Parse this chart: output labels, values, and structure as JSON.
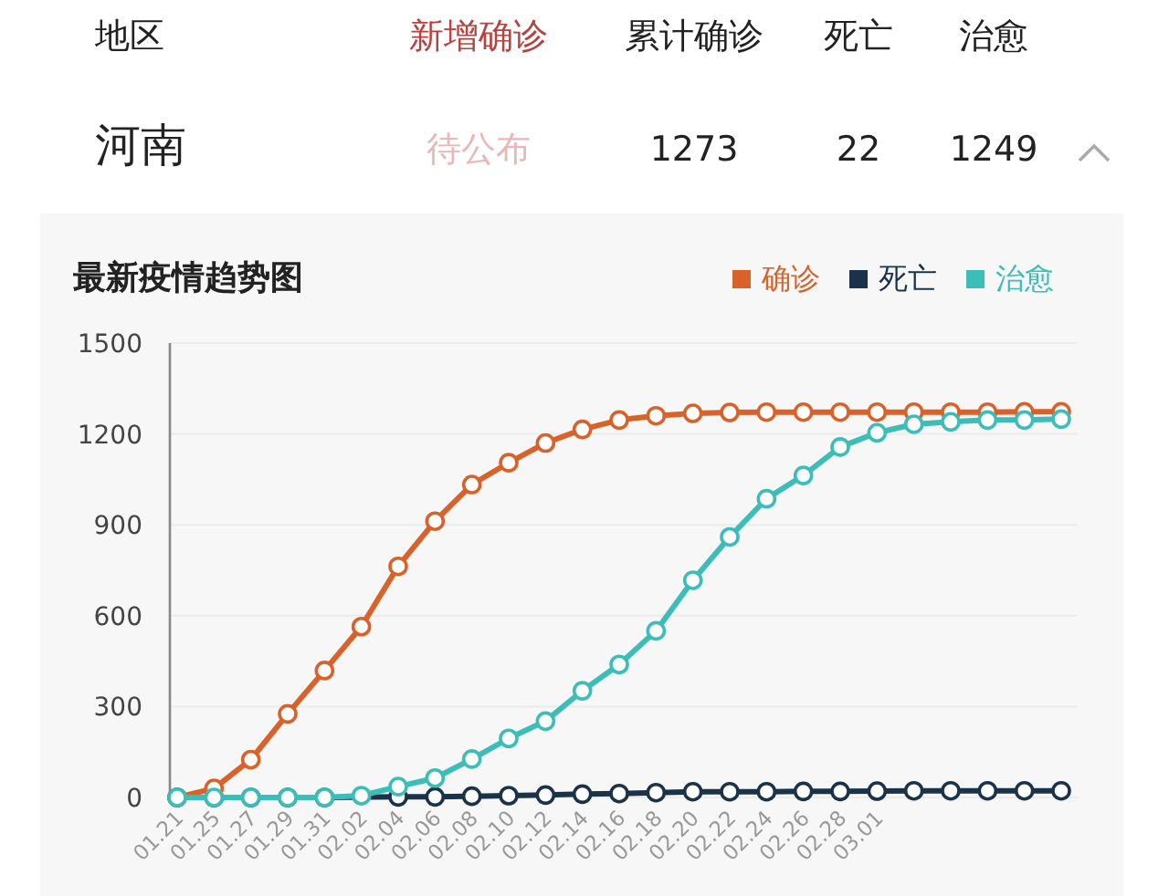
{
  "chart_data": {
    "type": "line",
    "title": "最新疫情趋势图",
    "annotations": [
      "地区",
      "新增确诊",
      "累计确诊",
      "死亡",
      "治愈",
      "河南",
      "待公布",
      "1273",
      "22",
      "1249"
    ],
    "categories": [
      "01.21",
      "01.25",
      "01.27",
      "01.29",
      "01.31",
      "02.02",
      "02.04",
      "02.06",
      "02.08",
      "02.10",
      "02.12",
      "02.14",
      "02.16",
      "02.18",
      "02.20",
      "02.22",
      "02.24",
      "02.26",
      "02.28",
      "03.01",
      null,
      null,
      null,
      null,
      null
    ],
    "series": [
      {
        "name": "确诊",
        "color": "#d9622b",
        "values": [
          0,
          30,
          125,
          276,
          419,
          564,
          763,
          912,
          1033,
          1105,
          1170,
          1215,
          1246,
          1260,
          1268,
          1271,
          1272,
          1272,
          1272,
          1272,
          1272,
          1272,
          1272,
          1273,
          1273
        ]
      },
      {
        "name": "死亡",
        "color": "#1b3349",
        "values": [
          0,
          0,
          0,
          0,
          0,
          null,
          2,
          2,
          4,
          6,
          8,
          11,
          13,
          16,
          19,
          19,
          19,
          20,
          20,
          21,
          22,
          22,
          22,
          22,
          22
        ]
      },
      {
        "name": "治愈",
        "color": "#3dbdb8",
        "values": [
          0,
          0,
          0,
          0,
          0,
          6,
          36,
          64,
          127,
          195,
          252,
          352,
          439,
          550,
          717,
          860,
          986,
          1063,
          1157,
          1204,
          1232,
          1240,
          1246,
          1246,
          1249
        ]
      }
    ],
    "ylim": [
      0,
      1500
    ],
    "yticks": [
      0,
      300,
      600,
      900,
      1200,
      1500
    ],
    "grid": "y",
    "legend": "top right",
    "marker": "circle",
    "line_style": "solid"
  }
}
